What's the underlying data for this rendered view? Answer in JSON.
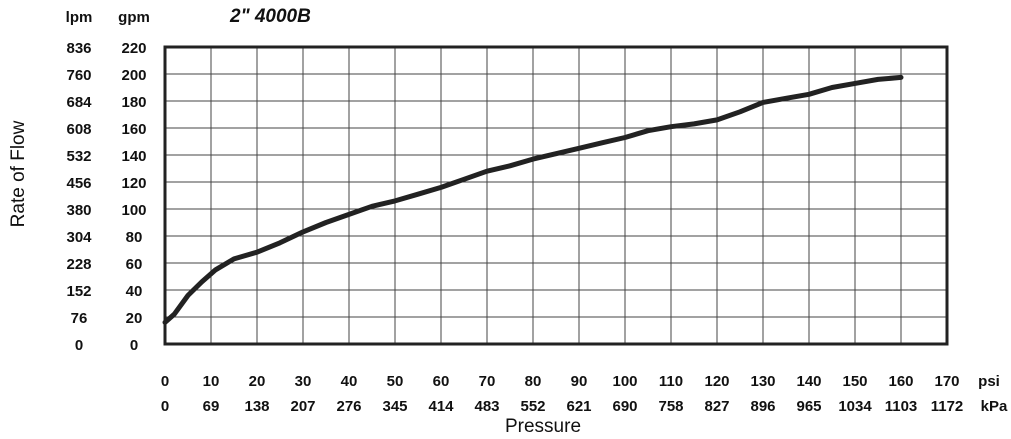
{
  "chart_data": {
    "type": "line",
    "title": "2\" 4000B",
    "xlabel": "Pressure",
    "ylabel": "Rate of Flow",
    "x_unit_primary": "psi",
    "x_unit_secondary": "kPa",
    "y_unit_primary": "gpm",
    "y_unit_secondary": "lpm",
    "xlim": [
      0,
      170
    ],
    "ylim": [
      0,
      220
    ],
    "grid": true,
    "x_ticks": [
      {
        "psi": "0",
        "kpa": "0"
      },
      {
        "psi": "10",
        "kpa": "69"
      },
      {
        "psi": "20",
        "kpa": "138"
      },
      {
        "psi": "30",
        "kpa": "207"
      },
      {
        "psi": "40",
        "kpa": "276"
      },
      {
        "psi": "50",
        "kpa": "345"
      },
      {
        "psi": "60",
        "kpa": "414"
      },
      {
        "psi": "70",
        "kpa": "483"
      },
      {
        "psi": "80",
        "kpa": "552"
      },
      {
        "psi": "90",
        "kpa": "621"
      },
      {
        "psi": "100",
        "kpa": "690"
      },
      {
        "psi": "110",
        "kpa": "758"
      },
      {
        "psi": "120",
        "kpa": "827"
      },
      {
        "psi": "130",
        "kpa": "896"
      },
      {
        "psi": "140",
        "kpa": "965"
      },
      {
        "psi": "150",
        "kpa": "1034"
      },
      {
        "psi": "160",
        "kpa": "1103"
      },
      {
        "psi": "170",
        "kpa": "1172"
      }
    ],
    "y_ticks": [
      {
        "gpm": "0",
        "lpm": "0"
      },
      {
        "gpm": "20",
        "lpm": "76"
      },
      {
        "gpm": "40",
        "lpm": "152"
      },
      {
        "gpm": "60",
        "lpm": "228"
      },
      {
        "gpm": "80",
        "lpm": "304"
      },
      {
        "gpm": "100",
        "lpm": "380"
      },
      {
        "gpm": "120",
        "lpm": "456"
      },
      {
        "gpm": "140",
        "lpm": "532"
      },
      {
        "gpm": "160",
        "lpm": "608"
      },
      {
        "gpm": "180",
        "lpm": "684"
      },
      {
        "gpm": "200",
        "lpm": "760"
      },
      {
        "gpm": "220",
        "lpm": "836"
      }
    ],
    "series": [
      {
        "color": "#222222",
        "points": [
          [
            0,
            16
          ],
          [
            2,
            22
          ],
          [
            5,
            36
          ],
          [
            8,
            46
          ],
          [
            11,
            55
          ],
          [
            15,
            63
          ],
          [
            20,
            68
          ],
          [
            25,
            75
          ],
          [
            30,
            83
          ],
          [
            35,
            90
          ],
          [
            40,
            96
          ],
          [
            45,
            102
          ],
          [
            50,
            106
          ],
          [
            55,
            111
          ],
          [
            60,
            116
          ],
          [
            65,
            122
          ],
          [
            70,
            128
          ],
          [
            75,
            132
          ],
          [
            80,
            137
          ],
          [
            85,
            141
          ],
          [
            90,
            145
          ],
          [
            95,
            149
          ],
          [
            100,
            153
          ],
          [
            105,
            158
          ],
          [
            110,
            161
          ],
          [
            115,
            163
          ],
          [
            120,
            166
          ],
          [
            125,
            172
          ],
          [
            130,
            179
          ],
          [
            135,
            182
          ],
          [
            140,
            185
          ],
          [
            145,
            190
          ],
          [
            150,
            193
          ],
          [
            155,
            196
          ],
          [
            160,
            197.5
          ]
        ]
      }
    ]
  }
}
